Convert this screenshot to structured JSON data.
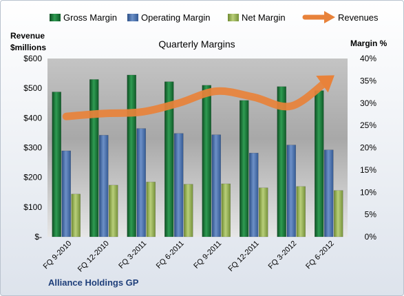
{
  "chart_data": {
    "type": "bar",
    "title": "Quarterly Margins",
    "footer": "Alliance Holdings GP",
    "categories": [
      "FQ 9-2010",
      "FQ 12-2010",
      "FQ 3-2011",
      "FQ 6-2011",
      "FQ 9-2011",
      "FQ 12-2011",
      "FQ 3-2012",
      "FQ 6-2012"
    ],
    "y_left": {
      "label_line1": "Revenue",
      "label_line2": "$millions",
      "range": [
        0,
        600
      ],
      "ticks": [
        "$-",
        "$100",
        "$200",
        "$300",
        "$400",
        "$500",
        "$600"
      ]
    },
    "y_right": {
      "label": "Margin %",
      "range": [
        0,
        40
      ],
      "ticks": [
        "0%",
        "5%",
        "10%",
        "15%",
        "20%",
        "25%",
        "30%",
        "35%",
        "40%"
      ]
    },
    "series": [
      {
        "name": "Gross Margin",
        "axis": "right",
        "kind": "bar",
        "color": "#1e7a3c",
        "values": [
          32.5,
          35.3,
          36.3,
          34.8,
          34.0,
          30.6,
          33.7,
          32.8
        ]
      },
      {
        "name": "Operating Margin",
        "axis": "right",
        "kind": "bar",
        "color": "#4a6fa8",
        "values": [
          19.3,
          22.8,
          24.3,
          23.2,
          22.9,
          18.8,
          20.6,
          19.5
        ]
      },
      {
        "name": "Net Margin",
        "axis": "right",
        "kind": "bar",
        "color": "#9bb55a",
        "values": [
          9.6,
          11.6,
          12.3,
          11.8,
          11.9,
          11.0,
          11.3,
          10.4
        ]
      },
      {
        "name": "Revenues",
        "axis": "left",
        "kind": "line",
        "color": "#e8823a",
        "values": [
          405,
          415,
          420,
          450,
          490,
          470,
          440,
          530
        ]
      }
    ],
    "legend_position": "top",
    "grid": false
  }
}
